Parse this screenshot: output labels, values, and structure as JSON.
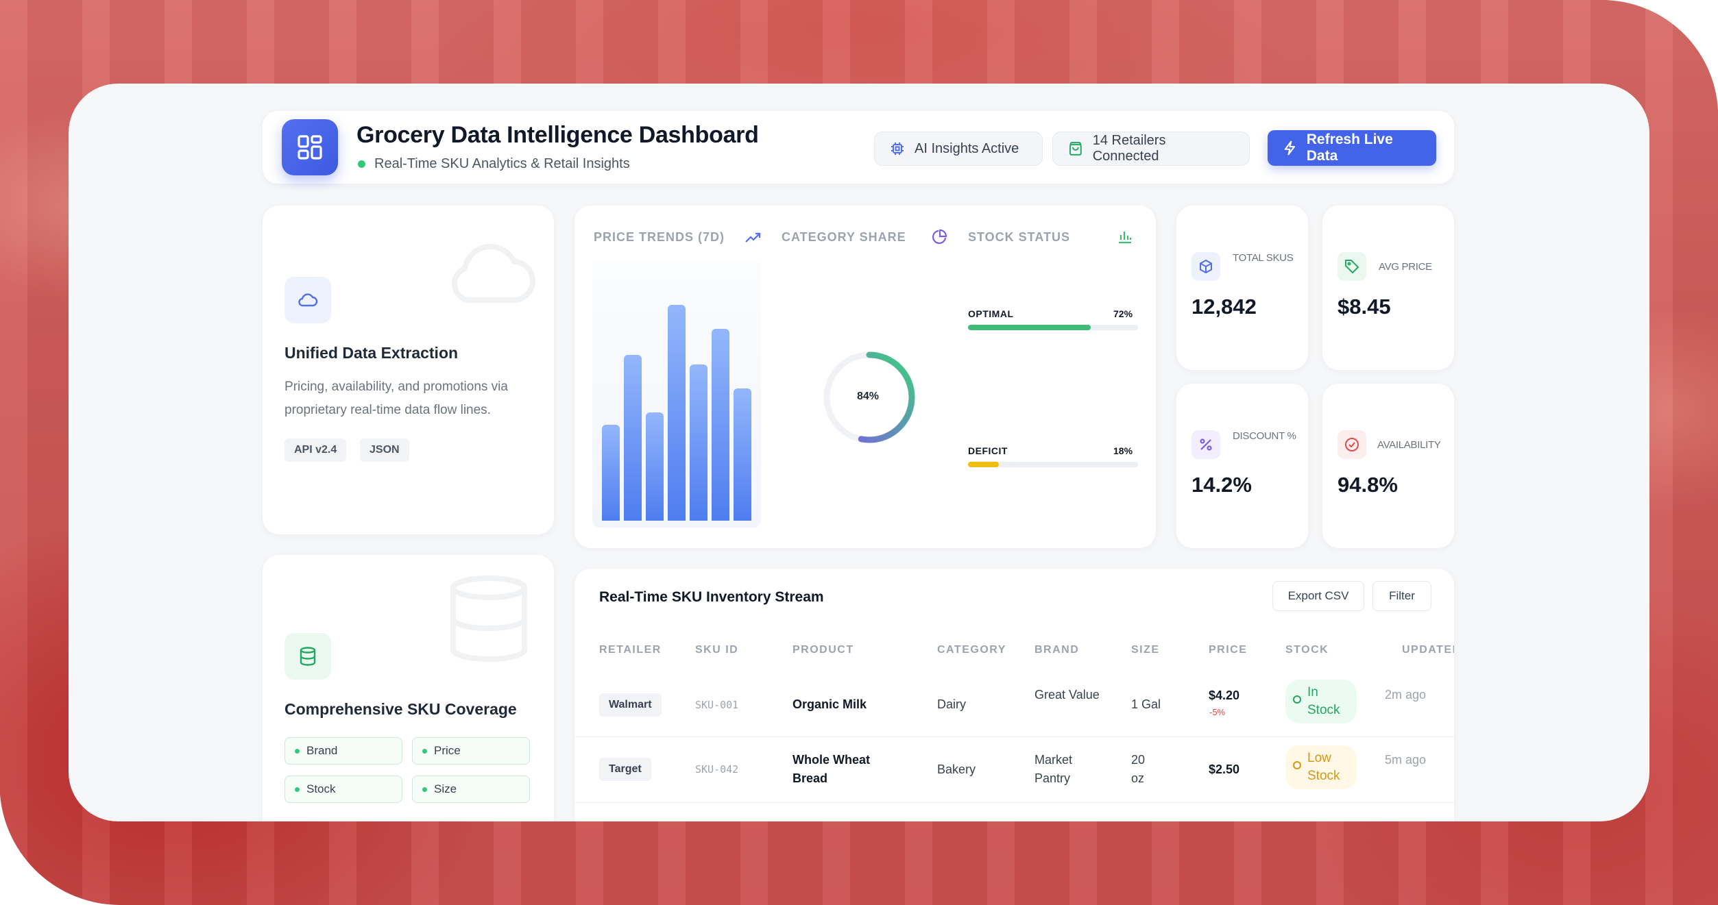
{
  "header": {
    "title": "Grocery Data Intelligence Dashboard",
    "subtitle": "Real-Time SKU Analytics & Retail Insights",
    "ai_status": "AI Insights Active",
    "retailers": "14 Retailers Connected",
    "refresh_label": "Refresh Live Data"
  },
  "feature_extraction": {
    "title": "Unified Data Extraction",
    "description": "Pricing, availability, and promotions via proprietary real-time data flow lines.",
    "tags": [
      "API v2.4",
      "JSON"
    ]
  },
  "feature_coverage": {
    "title": "Comprehensive SKU Coverage",
    "chips": [
      "Brand",
      "Price",
      "Stock",
      "Size"
    ]
  },
  "analytics": {
    "price_trends_label": "PRICE TRENDS (7D)",
    "category_share_label": "CATEGORY SHARE",
    "stock_status_label": "STOCK STATUS",
    "price_trend_levels": [
      0.4,
      0.69,
      0.45,
      0.9,
      0.65,
      0.8,
      0.55
    ],
    "category_share": {
      "value_label": "84%",
      "fraction": 0.84
    },
    "stock": [
      {
        "label": "OPTIMAL",
        "value": "72%",
        "fraction": 0.72,
        "color": "#3dbb77"
      },
      {
        "label": "DEFICIT",
        "value": "18%",
        "fraction": 0.18,
        "color": "#f2bd12"
      }
    ]
  },
  "kpis": [
    {
      "label": "TOTAL SKUS",
      "value": "12,842",
      "icon": "cube-icon",
      "color": "#4f6ff0"
    },
    {
      "label": "AVG PRICE",
      "value": "$8.45",
      "icon": "tag-icon",
      "color": "#22a861"
    },
    {
      "label": "DISCOUNT %",
      "value": "14.2%",
      "icon": "percent-icon",
      "color": "#7c5ce6"
    },
    {
      "label": "AVAILABILITY",
      "value": "94.8%",
      "icon": "check-circle-icon",
      "color": "#e04a4a"
    }
  ],
  "table": {
    "title": "Real-Time SKU Inventory Stream",
    "export_label": "Export CSV",
    "filter_label": "Filter",
    "columns": [
      "RETAILER",
      "SKU ID",
      "PRODUCT",
      "CATEGORY",
      "BRAND",
      "SIZE",
      "PRICE",
      "STOCK",
      "UPDATED"
    ],
    "rows": [
      {
        "retailer": "Walmart",
        "sku": "SKU-001",
        "product": "Organic Milk",
        "category": "Dairy",
        "brand": "Great Value",
        "size": "1 Gal",
        "price": "$4.20",
        "delta": "-5%",
        "stock": "In Stock",
        "updated": "2m ago"
      },
      {
        "retailer": "Target",
        "sku": "SKU-042",
        "product": "Whole Wheat Bread",
        "category": "Bakery",
        "brand": "Market Pantry",
        "size": "20 oz",
        "price": "$2.50",
        "delta": "",
        "stock": "Low Stock",
        "updated": "5m ago"
      }
    ]
  }
}
